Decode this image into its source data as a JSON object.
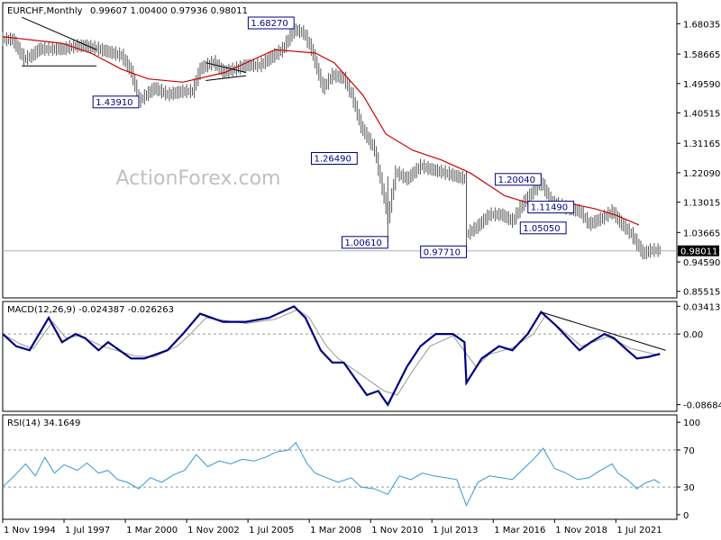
{
  "header": {
    "symbol_timeframe": "EURCHF,Monthly",
    "ohlc": "0.99607 1.00400 0.97936 0.98011"
  },
  "watermark": "ActionForex.com",
  "colors": {
    "candle": "#555555",
    "sma": "#cc0000",
    "macd": "#000080",
    "signal": "#999999",
    "rsi": "#3399cc",
    "trendline": "#000000",
    "annotation_border": "#000080",
    "last_price_bg": "#000000"
  },
  "chart_data": [
    {
      "type": "candlestick",
      "title": "EURCHF,Monthly",
      "y_ticks": [
        "1.68035",
        "1.58665",
        "1.49590",
        "1.40515",
        "1.31165",
        "1.22090",
        "1.13015",
        "1.03665",
        "0.94590",
        "0.85515"
      ],
      "y_tick_values": [
        1.68035,
        1.58665,
        1.4959,
        1.40515,
        1.31165,
        1.2209,
        1.13015,
        1.03665,
        0.9459,
        0.85515
      ],
      "ylim": [
        0.835,
        1.745
      ],
      "last_price": 0.98011,
      "last_price_label": "0.98011",
      "annotations": [
        {
          "label": "1.68270",
          "x": "2007-07",
          "y": 1.6827
        },
        {
          "label": "1.43910",
          "x": "2000-10",
          "y": 1.4391
        },
        {
          "label": "1.26490",
          "x": "2010-04",
          "y": 1.2649
        },
        {
          "label": "1.00610",
          "x": "2011-08",
          "y": 1.0061
        },
        {
          "label": "0.97710",
          "x": "2015-01",
          "y": 0.9771
        },
        {
          "label": "1.20040",
          "x": "2018-04",
          "y": 1.2004
        },
        {
          "label": "1.05050",
          "x": "2019-05",
          "y": 1.0505
        },
        {
          "label": "1.11490",
          "x": "2019-09",
          "y": 1.1149
        }
      ],
      "moving_average": {
        "points": [
          [
            "1994-11",
            1.64
          ],
          [
            "1997-06",
            1.62
          ],
          [
            "1998-09",
            1.59
          ],
          [
            "2000-01",
            1.54
          ],
          [
            "2001-03",
            1.51
          ],
          [
            "2002-09",
            1.5
          ],
          [
            "2004-07",
            1.53
          ],
          [
            "2006-09",
            1.6
          ],
          [
            "2008-06",
            1.59
          ],
          [
            "2009-04",
            1.56
          ],
          [
            "2010-07",
            1.46
          ],
          [
            "2011-07",
            1.34
          ],
          [
            "2012-09",
            1.29
          ],
          [
            "2013-12",
            1.26
          ],
          [
            "2015-03",
            1.22
          ],
          [
            "2016-09",
            1.15
          ],
          [
            "2017-08",
            1.13
          ],
          [
            "2019-04",
            1.13
          ],
          [
            "2020-08",
            1.11
          ],
          [
            "2021-07",
            1.09
          ],
          [
            "2022-07",
            1.06
          ]
        ]
      },
      "price_path": [
        [
          "1994-11",
          1.63
        ],
        [
          "1995-04",
          1.63
        ],
        [
          "1995-10",
          1.57
        ],
        [
          "1996-02",
          1.58
        ],
        [
          "1996-06",
          1.6
        ],
        [
          "1997-06",
          1.6
        ],
        [
          "1998-01",
          1.61
        ],
        [
          "1998-06",
          1.61
        ],
        [
          "1999-01",
          1.6
        ],
        [
          "1999-07",
          1.59
        ],
        [
          "2000-01",
          1.58
        ],
        [
          "2000-06",
          1.53
        ],
        [
          "2000-10",
          1.44
        ],
        [
          "2001-06",
          1.48
        ],
        [
          "2002-01",
          1.46
        ],
        [
          "2002-09",
          1.47
        ],
        [
          "2003-02",
          1.47
        ],
        [
          "2003-06",
          1.54
        ],
        [
          "2004-01",
          1.56
        ],
        [
          "2004-06",
          1.53
        ],
        [
          "2005-01",
          1.54
        ],
        [
          "2005-06",
          1.55
        ],
        [
          "2006-01",
          1.55
        ],
        [
          "2006-06",
          1.57
        ],
        [
          "2007-01",
          1.6
        ],
        [
          "2007-07",
          1.66
        ],
        [
          "2007-12",
          1.65
        ],
        [
          "2008-04",
          1.6
        ],
        [
          "2008-10",
          1.48
        ],
        [
          "2009-03",
          1.52
        ],
        [
          "2009-09",
          1.51
        ],
        [
          "2010-01",
          1.46
        ],
        [
          "2010-06",
          1.36
        ],
        [
          "2011-01",
          1.29
        ],
        [
          "2011-08",
          1.08
        ],
        [
          "2011-12",
          1.22
        ],
        [
          "2012-06",
          1.2
        ],
        [
          "2013-01",
          1.24
        ],
        [
          "2013-06",
          1.23
        ],
        [
          "2014-01",
          1.22
        ],
        [
          "2014-12",
          1.2
        ],
        [
          "2015-01",
          1.03
        ],
        [
          "2015-06",
          1.05
        ],
        [
          "2016-01",
          1.09
        ],
        [
          "2016-07",
          1.09
        ],
        [
          "2017-01",
          1.07
        ],
        [
          "2017-07",
          1.13
        ],
        [
          "2018-04",
          1.19
        ],
        [
          "2018-09",
          1.13
        ],
        [
          "2019-05",
          1.11
        ],
        [
          "2019-12",
          1.1
        ],
        [
          "2020-05",
          1.06
        ],
        [
          "2020-12",
          1.08
        ],
        [
          "2021-05",
          1.1
        ],
        [
          "2021-10",
          1.06
        ],
        [
          "2022-03",
          1.03
        ],
        [
          "2022-09",
          0.97
        ],
        [
          "2023-01",
          0.98
        ],
        [
          "2023-06",
          0.98
        ]
      ],
      "trendlines": [
        [
          [
            "1995-09",
            1.7
          ],
          [
            "1998-12",
            1.6
          ]
        ],
        [
          [
            "1995-09",
            1.55
          ],
          [
            "1998-12",
            1.55
          ]
        ],
        [
          [
            "2003-09",
            1.56
          ],
          [
            "2005-06",
            1.53
          ]
        ],
        [
          [
            "2003-09",
            1.505
          ],
          [
            "2005-06",
            1.52
          ]
        ]
      ]
    },
    {
      "type": "line",
      "title": "MACD(12,26,9) -0.024387 -0.026263",
      "label": "MACD(12,26,9) -0.024387 -0.026263",
      "y_ticks": [
        "0.034137",
        "0.00",
        "-0.086849"
      ],
      "y_tick_values": [
        0.034137,
        0.0,
        -0.086849
      ],
      "ylim": [
        -0.095,
        0.04
      ],
      "series": [
        {
          "name": "",
          "points": [
            [
              "1994-11",
              0.0
            ],
            [
              "1995-06",
              -0.015
            ],
            [
              "1996-01",
              -0.02
            ],
            [
              "1996-11",
              0.02
            ],
            [
              "1997-06",
              -0.01
            ],
            [
              "1998-01",
              0.0
            ],
            [
              "1998-06",
              -0.005
            ],
            [
              "1999-01",
              -0.02
            ],
            [
              "1999-06",
              -0.01
            ],
            [
              "2000-06",
              -0.03
            ],
            [
              "2001-01",
              -0.03
            ],
            [
              "2002-01",
              -0.02
            ],
            [
              "2002-09",
              0.0
            ],
            [
              "2003-06",
              0.025
            ],
            [
              "2004-06",
              0.015
            ],
            [
              "2005-06",
              0.015
            ],
            [
              "2006-06",
              0.02
            ],
            [
              "2007-07",
              0.034
            ],
            [
              "2008-01",
              0.02
            ],
            [
              "2008-09",
              -0.02
            ],
            [
              "2009-03",
              -0.035
            ],
            [
              "2009-09",
              -0.035
            ],
            [
              "2010-03",
              -0.055
            ],
            [
              "2010-09",
              -0.075
            ],
            [
              "2011-03",
              -0.07
            ],
            [
              "2011-08",
              -0.087
            ],
            [
              "2012-06",
              -0.04
            ],
            [
              "2013-01",
              -0.015
            ],
            [
              "2013-09",
              0.0
            ],
            [
              "2014-06",
              0.0
            ],
            [
              "2014-12",
              -0.01
            ],
            [
              "2015-01",
              -0.06
            ],
            [
              "2015-09",
              -0.03
            ],
            [
              "2016-06",
              -0.015
            ],
            [
              "2017-01",
              -0.02
            ],
            [
              "2017-09",
              0.0
            ],
            [
              "2018-04",
              0.027
            ],
            [
              "2018-12",
              0.01
            ],
            [
              "2019-06",
              -0.005
            ],
            [
              "2019-12",
              -0.02
            ],
            [
              "2020-06",
              -0.01
            ],
            [
              "2021-01",
              0.0
            ],
            [
              "2021-06",
              -0.005
            ],
            [
              "2022-01",
              -0.02
            ],
            [
              "2022-06",
              -0.03
            ],
            [
              "2022-12",
              -0.028
            ],
            [
              "2023-06",
              -0.024387
            ]
          ]
        },
        {
          "name": "",
          "points": [
            [
              "1994-11",
              0.0
            ],
            [
              "1995-08",
              -0.012
            ],
            [
              "1996-03",
              -0.018
            ],
            [
              "1997-01",
              0.015
            ],
            [
              "1997-08",
              -0.005
            ],
            [
              "1998-03",
              -0.002
            ],
            [
              "1999-03",
              -0.015
            ],
            [
              "2000-08",
              -0.027
            ],
            [
              "2001-06",
              -0.028
            ],
            [
              "2002-06",
              -0.015
            ],
            [
              "2003-01",
              0.0
            ],
            [
              "2003-09",
              0.02
            ],
            [
              "2005-06",
              0.013
            ],
            [
              "2006-09",
              0.018
            ],
            [
              "2007-09",
              0.03
            ],
            [
              "2008-03",
              0.02
            ],
            [
              "2008-12",
              -0.015
            ],
            [
              "2009-06",
              -0.03
            ],
            [
              "2010-06",
              -0.05
            ],
            [
              "2011-06",
              -0.07
            ],
            [
              "2012-01",
              -0.075
            ],
            [
              "2012-09",
              -0.045
            ],
            [
              "2013-06",
              -0.015
            ],
            [
              "2014-06",
              -0.002
            ],
            [
              "2015-06",
              -0.04
            ],
            [
              "2016-01",
              -0.025
            ],
            [
              "2017-01",
              -0.017
            ],
            [
              "2017-12",
              0.0
            ],
            [
              "2018-06",
              0.022
            ],
            [
              "2019-03",
              0.005
            ],
            [
              "2020-01",
              -0.015
            ],
            [
              "2021-03",
              -0.003
            ],
            [
              "2022-03",
              -0.018
            ],
            [
              "2023-06",
              -0.026263
            ]
          ]
        }
      ],
      "trendline": [
        [
          "2018-04",
          0.027
        ],
        [
          "2023-09",
          -0.02
        ]
      ]
    },
    {
      "type": "line",
      "title": "RSI(14) 34.1649",
      "label": "RSI(14) 34.1649",
      "y_ticks": [
        "100",
        "70",
        "30",
        "0"
      ],
      "y_tick_values": [
        100,
        70,
        30,
        0
      ],
      "ylim": [
        -5,
        108
      ],
      "series": [
        {
          "name": "",
          "points": [
            [
              "1994-11",
              30
            ],
            [
              "1995-05",
              42
            ],
            [
              "1995-11",
              55
            ],
            [
              "1996-04",
              42
            ],
            [
              "1996-09",
              62
            ],
            [
              "1997-02",
              45
            ],
            [
              "1997-07",
              54
            ],
            [
              "1998-02",
              48
            ],
            [
              "1998-07",
              56
            ],
            [
              "1999-01",
              45
            ],
            [
              "1999-06",
              48
            ],
            [
              "1999-11",
              38
            ],
            [
              "2000-04",
              35
            ],
            [
              "2000-10",
              28
            ],
            [
              "2001-04",
              40
            ],
            [
              "2001-10",
              35
            ],
            [
              "2002-04",
              43
            ],
            [
              "2002-10",
              48
            ],
            [
              "2003-04",
              65
            ],
            [
              "2003-10",
              52
            ],
            [
              "2004-04",
              58
            ],
            [
              "2004-10",
              55
            ],
            [
              "2005-04",
              60
            ],
            [
              "2005-10",
              58
            ],
            [
              "2006-04",
              62
            ],
            [
              "2006-10",
              68
            ],
            [
              "2007-04",
              70
            ],
            [
              "2007-08",
              78
            ],
            [
              "2008-02",
              55
            ],
            [
              "2008-06",
              45
            ],
            [
              "2008-12",
              40
            ],
            [
              "2009-06",
              35
            ],
            [
              "2010-01",
              40
            ],
            [
              "2010-06",
              30
            ],
            [
              "2011-01",
              28
            ],
            [
              "2011-08",
              22
            ],
            [
              "2012-02",
              42
            ],
            [
              "2012-08",
              38
            ],
            [
              "2013-02",
              45
            ],
            [
              "2013-08",
              42
            ],
            [
              "2014-02",
              40
            ],
            [
              "2014-08",
              38
            ],
            [
              "2015-01",
              10
            ],
            [
              "2015-07",
              35
            ],
            [
              "2016-01",
              42
            ],
            [
              "2016-07",
              40
            ],
            [
              "2017-01",
              38
            ],
            [
              "2017-07",
              50
            ],
            [
              "2018-01",
              62
            ],
            [
              "2018-05",
              72
            ],
            [
              "2018-11",
              50
            ],
            [
              "2019-05",
              45
            ],
            [
              "2019-11",
              38
            ],
            [
              "2020-05",
              40
            ],
            [
              "2020-11",
              48
            ],
            [
              "2021-05",
              55
            ],
            [
              "2021-08",
              45
            ],
            [
              "2022-01",
              38
            ],
            [
              "2022-06",
              28
            ],
            [
              "2022-10",
              34
            ],
            [
              "2023-03",
              38
            ],
            [
              "2023-06",
              34.1649
            ]
          ]
        }
      ]
    }
  ],
  "x_axis": {
    "labels": [
      "1 Nov 1994",
      "1 Jul 1997",
      "1 Mar 2000",
      "1 Nov 2002",
      "1 Jul 2005",
      "1 Mar 2008",
      "1 Nov 2010",
      "1 Jul 2013",
      "1 Mar 2016",
      "1 Nov 2018",
      "1 Jul 2021"
    ],
    "values": [
      "1994-11",
      "1997-07",
      "2000-03",
      "2002-11",
      "2005-07",
      "2008-03",
      "2010-11",
      "2013-07",
      "2016-03",
      "2018-11",
      "2021-07"
    ],
    "range": [
      "1994-11",
      "2023-12"
    ]
  }
}
